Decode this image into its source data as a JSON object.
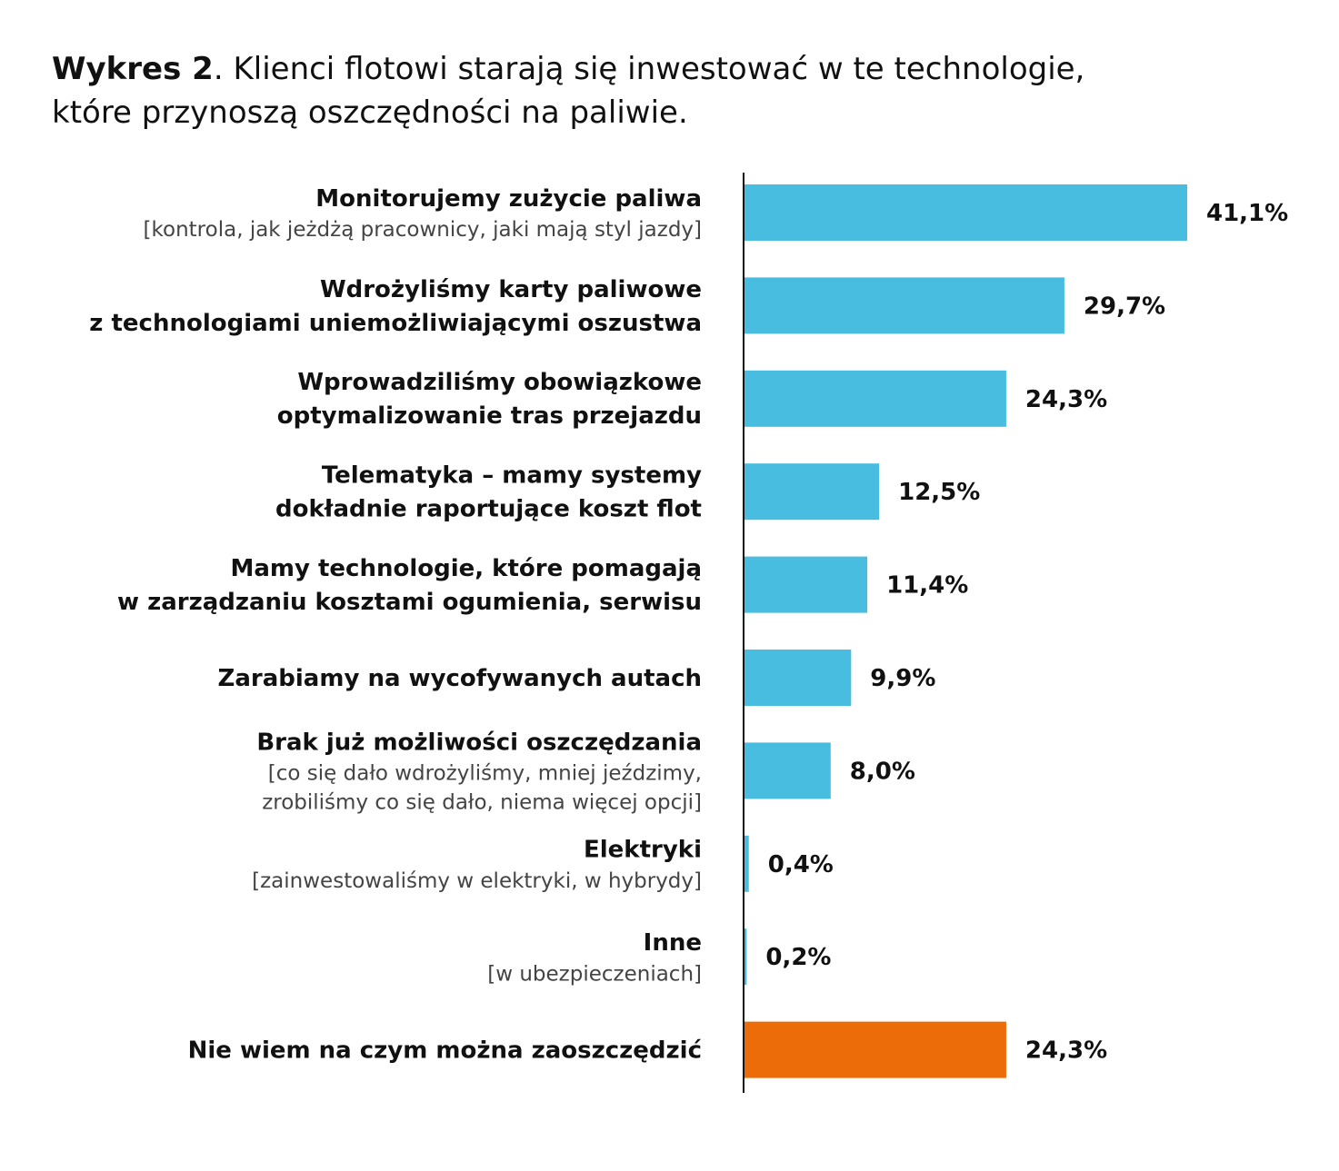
{
  "title": {
    "prefix": "Wykres 2",
    "line1": ". Klienci flotowi starają się inwestować w te technologie,",
    "line2": "które przynoszą oszczędności na paliwie."
  },
  "colors": {
    "bar": "#48bde0",
    "bar_highlight": "#ec6c0a",
    "axis": "#111111"
  },
  "chart_data": {
    "type": "bar",
    "orientation": "horizontal",
    "value_suffix": "%",
    "categories": [
      {
        "main": [
          "Monitorujemy zużycie paliwa"
        ],
        "sub": [
          "[kontrola, jak jeżdżą pracownicy, jaki mają styl jazdy]"
        ]
      },
      {
        "main": [
          "Wdrożyliśmy karty paliwowe",
          "z technologiami uniemożliwiającymi oszustwa"
        ],
        "sub": []
      },
      {
        "main": [
          "Wprowadziliśmy obowiązkowe",
          "optymalizowanie tras przejazdu"
        ],
        "sub": []
      },
      {
        "main": [
          "Telematyka – mamy systemy",
          "dokładnie raportujące koszt flot"
        ],
        "sub": []
      },
      {
        "main": [
          "Mamy technologie, które pomagają",
          "w zarządzaniu kosztami ogumienia, serwisu"
        ],
        "sub": []
      },
      {
        "main": [
          "Zarabiamy na wycofywanych autach"
        ],
        "sub": []
      },
      {
        "main": [
          "Brak już możliwości oszczędzania"
        ],
        "sub": [
          "[co się dało wdrożyliśmy, mniej jeździmy,",
          "zrobiliśmy co się dało, niema więcej opcji]"
        ]
      },
      {
        "main": [
          "Elektryki"
        ],
        "sub": [
          "[zainwestowaliśmy w elektryki, w hybrydy]"
        ]
      },
      {
        "main": [
          "Inne"
        ],
        "sub": [
          "[w ubezpieczeniach]"
        ]
      },
      {
        "main": [
          "Nie wiem na czym można zaoszczędzić"
        ],
        "sub": []
      }
    ],
    "values": [
      41.1,
      29.7,
      24.3,
      12.5,
      11.4,
      9.9,
      8.0,
      0.4,
      0.2,
      24.3
    ],
    "value_labels": [
      "41,1%",
      "29,7%",
      "24,3%",
      "12,5%",
      "11,4%",
      "9,9%",
      "8,0%",
      "0,4%",
      "0,2%",
      "24,3%"
    ],
    "highlight_index": 9,
    "xlim": [
      0,
      41.1
    ],
    "grid": false,
    "legend": "none"
  }
}
